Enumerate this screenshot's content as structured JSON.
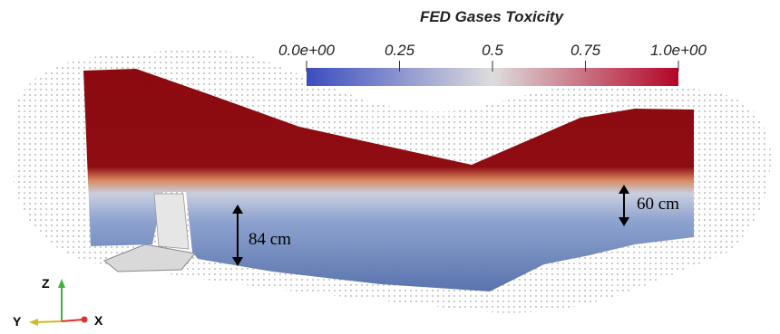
{
  "colorbar": {
    "title": "FED Gases Toxicity",
    "range": [
      0,
      1
    ],
    "ticks": [
      {
        "value": 0,
        "label": "0.0e+00"
      },
      0.25,
      0.5,
      0.75,
      {
        "value": 1,
        "label": "1.0e+00"
      }
    ],
    "colors": [
      "#3b4cc0",
      "#dddddd",
      "#b40426"
    ]
  },
  "annotations": [
    "84 cm",
    "60 cm"
  ],
  "axes": [
    "Z",
    "Y",
    "X"
  ]
}
